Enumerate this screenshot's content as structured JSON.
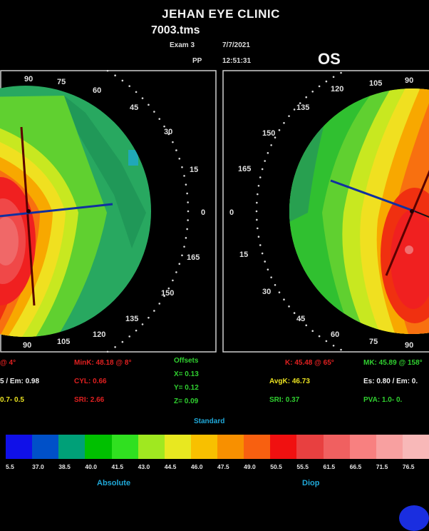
{
  "header": {
    "clinic": "JEHAN EYE CLINIC",
    "file": "7003.tms",
    "exam_label": "Exam 3",
    "date": "7/7/2021",
    "pp_label": "PP",
    "time": "12:51:31",
    "eye": "OS"
  },
  "left_map": {
    "degree_labels": [
      "90",
      "75",
      "60",
      "45",
      "30",
      "15",
      "0",
      "165",
      "150",
      "135",
      "120",
      "105",
      "90"
    ]
  },
  "right_map": {
    "degree_labels": [
      "120",
      "105",
      "90",
      "135",
      "150",
      "165",
      "0",
      "15",
      "30",
      "45",
      "60",
      "75",
      "90"
    ]
  },
  "left_stats": {
    "k_line": "@ 4°",
    "mink_line": "MinK: 48.18 @ 8°",
    "es_line": "5 / Em: 0.98",
    "cyl_line": "CYL: 0.66",
    "pva_line": "0.7- 0.5",
    "sri_line": "SRI: 2.66"
  },
  "offsets": {
    "title": "Offsets",
    "x": "X= 0.13",
    "y": "Y= 0.12",
    "z": "Z= 0.09"
  },
  "right_stats": {
    "k_line": "K: 45.48 @ 65°",
    "mk_line": "MK: 45.89 @ 158°",
    "avgk_line": "AvgK: 46.73",
    "es_line": "Es: 0.80 / Em: 0.",
    "sri_line": "SRI: 0.37",
    "pva_line": "PVA: 1.0- 0."
  },
  "scale": {
    "mode": "Standard",
    "values": [
      "5.5",
      "37.0",
      "38.5",
      "40.0",
      "41.5",
      "43.0",
      "44.5",
      "46.0",
      "47.5",
      "49.0",
      "50.5",
      "55.5",
      "61.5",
      "66.5",
      "71.5",
      "76.5"
    ],
    "colors": [
      "#1010e8",
      "#0050c8",
      "#00a078",
      "#00c000",
      "#30e020",
      "#a0e820",
      "#e8e820",
      "#f8c000",
      "#f89000",
      "#f86010",
      "#f01010",
      "#e84040",
      "#f06060",
      "#f88080",
      "#f8a0a0",
      "#f8b8b8"
    ],
    "left_label": "Absolute",
    "right_label": "Diop"
  }
}
